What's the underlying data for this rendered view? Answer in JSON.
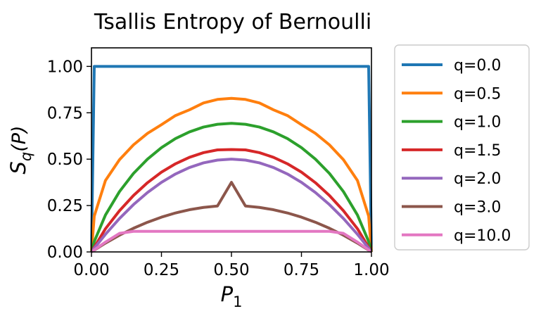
{
  "chart_data": {
    "type": "line",
    "title": "Tsallis Entropy of Bernoulli",
    "xlabel_main": "P",
    "xlabel_sub": "1",
    "ylabel_main": "S",
    "ylabel_sub": "q",
    "ylabel_arg": "(P)",
    "xlim": [
      0.0,
      1.0
    ],
    "ylim": [
      0.0,
      1.1
    ],
    "x_ticks": [
      0.0,
      0.25,
      0.5,
      0.75,
      1.0
    ],
    "x_tick_labels": [
      "0.00",
      "0.25",
      "0.50",
      "0.75",
      "1.00"
    ],
    "y_ticks": [
      0.0,
      0.25,
      0.5,
      0.75,
      1.0
    ],
    "y_tick_labels": [
      "0.00",
      "0.25",
      "0.50",
      "0.75",
      "1.00"
    ],
    "grid": false,
    "legend_placement": "outside-right",
    "x": [
      0.0,
      0.01,
      0.05,
      0.1,
      0.15,
      0.2,
      0.25,
      0.3,
      0.35,
      0.4,
      0.45,
      0.5,
      0.55,
      0.6,
      0.65,
      0.7,
      0.75,
      0.8,
      0.85,
      0.9,
      0.95,
      0.99,
      1.0
    ],
    "series": [
      {
        "name": "q=0.0",
        "color": "#1f77b4",
        "values": [
          0.0,
          1.0,
          1.0,
          1.0,
          1.0,
          1.0,
          1.0,
          1.0,
          1.0,
          1.0,
          1.0,
          1.0,
          1.0,
          1.0,
          1.0,
          1.0,
          1.0,
          1.0,
          1.0,
          1.0,
          1.0,
          1.0,
          0.0
        ]
      },
      {
        "name": "q=0.5",
        "color": "#ff7f0e",
        "values": [
          0.0,
          0.193,
          0.385,
          0.497,
          0.577,
          0.639,
          0.686,
          0.735,
          0.766,
          0.803,
          0.822,
          0.828,
          0.822,
          0.803,
          0.766,
          0.735,
          0.686,
          0.639,
          0.577,
          0.497,
          0.385,
          0.193,
          0.0
        ]
      },
      {
        "name": "q=1.0",
        "color": "#2ca02c",
        "values": [
          0.0,
          0.056,
          0.199,
          0.325,
          0.423,
          0.5,
          0.562,
          0.611,
          0.647,
          0.673,
          0.688,
          0.693,
          0.688,
          0.673,
          0.647,
          0.611,
          0.562,
          0.5,
          0.423,
          0.325,
          0.199,
          0.056,
          0.0
        ]
      },
      {
        "name": "q=1.5",
        "color": "#d62728",
        "values": [
          0.0,
          0.025,
          0.125,
          0.222,
          0.304,
          0.373,
          0.43,
          0.475,
          0.51,
          0.535,
          0.55,
          0.552,
          0.55,
          0.535,
          0.51,
          0.475,
          0.43,
          0.373,
          0.304,
          0.222,
          0.125,
          0.025,
          0.0
        ]
      },
      {
        "name": "q=2.0",
        "color": "#9467bd",
        "values": [
          0.0,
          0.02,
          0.095,
          0.18,
          0.255,
          0.32,
          0.375,
          0.42,
          0.455,
          0.48,
          0.495,
          0.5,
          0.495,
          0.48,
          0.455,
          0.42,
          0.375,
          0.32,
          0.255,
          0.18,
          0.095,
          0.02,
          0.0
        ]
      },
      {
        "name": "q=3.0",
        "color": "#8c564b",
        "values": [
          0.0,
          0.0099,
          0.0475,
          0.09,
          0.1275,
          0.16,
          0.1875,
          0.21,
          0.2275,
          0.24,
          0.2475,
          0.375,
          0.2475,
          0.24,
          0.2275,
          0.21,
          0.1875,
          0.16,
          0.1275,
          0.09,
          0.0475,
          0.0099,
          0.0
        ]
      },
      {
        "name": "q=10.0",
        "color": "#e377c2",
        "values": [
          0.0,
          0.011,
          0.053,
          0.1,
          0.111,
          0.111,
          0.111,
          0.111,
          0.111,
          0.111,
          0.111,
          0.111,
          0.111,
          0.111,
          0.111,
          0.111,
          0.111,
          0.111,
          0.111,
          0.1,
          0.053,
          0.011,
          0.0
        ]
      }
    ]
  }
}
